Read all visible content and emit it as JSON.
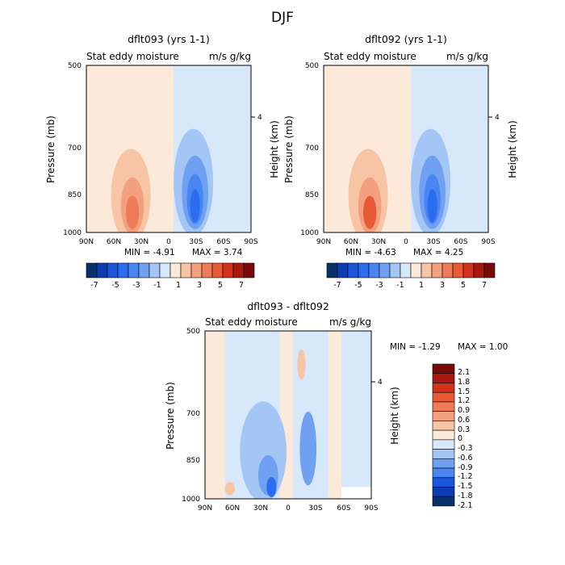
{
  "title": "DJF",
  "colors": {
    "scale": [
      "#08306b",
      "#0a3cb4",
      "#1a55dc",
      "#2b6cf0",
      "#4a86f2",
      "#6fa0f2",
      "#a3c6f5",
      "#d7e8fb",
      "#fde9d9",
      "#f8c4a6",
      "#f3a07e",
      "#ef7c58",
      "#e75a35",
      "#d3321a",
      "#a8180f",
      "#7a0a0a"
    ],
    "frame": "#000000"
  },
  "chart_data": [
    {
      "type": "heatmap",
      "panel_title": "dflt093 (yrs 1-1)",
      "left_subtitle": "Stat eddy moisture",
      "right_subtitle": "m/s g/kg",
      "ylabel": "Pressure (mb)",
      "y2label": "Height (km)",
      "y_ticks": [
        "500",
        "700",
        "850",
        "1000"
      ],
      "y2_ticks": [
        "4"
      ],
      "x_ticks": [
        "90N",
        "60N",
        "30N",
        "0",
        "30S",
        "60S",
        "90S"
      ],
      "min_text": "MIN =   -4.91",
      "max_text": "MAX =    3.74",
      "min": -4.91,
      "max": 3.74,
      "colorbar_labels": [
        "-7",
        "-5",
        "-3",
        "-1",
        "1",
        "3",
        "5",
        "7"
      ]
    },
    {
      "type": "heatmap",
      "panel_title": "dflt092 (yrs 1-1)",
      "left_subtitle": "Stat eddy moisture",
      "right_subtitle": "m/s g/kg",
      "ylabel": "Pressure (mb)",
      "y2label": "Height (km)",
      "y_ticks": [
        "500",
        "700",
        "850",
        "1000"
      ],
      "y2_ticks": [
        "4"
      ],
      "x_ticks": [
        "90N",
        "60N",
        "30N",
        "0",
        "30S",
        "60S",
        "90S"
      ],
      "min_text": "MIN =   -4.63",
      "max_text": "MAX =    4.25",
      "min": -4.63,
      "max": 4.25,
      "colorbar_labels": [
        "-7",
        "-5",
        "-3",
        "-1",
        "1",
        "3",
        "5",
        "7"
      ]
    },
    {
      "type": "heatmap",
      "panel_title": "dflt093 - dflt092",
      "left_subtitle": "Stat eddy moisture",
      "right_subtitle": "m/s g/kg",
      "ylabel": "Pressure (mb)",
      "y2label": "Height (km)",
      "y_ticks": [
        "500",
        "700",
        "850",
        "1000"
      ],
      "y2_ticks": [
        "4"
      ],
      "x_ticks": [
        "90N",
        "60N",
        "30N",
        "0",
        "30S",
        "60S",
        "90S"
      ],
      "min_text": "MIN =   -1.29",
      "max_text": "MAX =    1.00",
      "min": -1.29,
      "max": 1.0,
      "colorbar_labels": [
        "2.1",
        "1.8",
        "1.5",
        "1.2",
        "0.9",
        "0.6",
        "0.3",
        "0",
        "-0.3",
        "-0.6",
        "-0.9",
        "-1.2",
        "-1.5",
        "-1.8",
        "-2.1"
      ]
    }
  ]
}
